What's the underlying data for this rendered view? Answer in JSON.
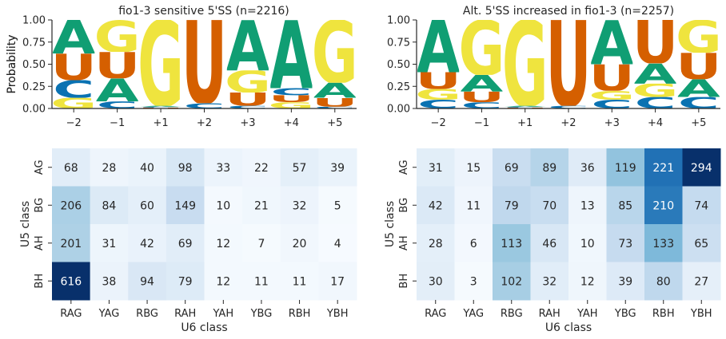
{
  "colors": {
    "A": "#109e73",
    "C": "#0a72b2",
    "G": "#efe43e",
    "U": "#d55f00",
    "cmap": [
      "#f7fbff",
      "#deebf7",
      "#c6dbef",
      "#9ecae1",
      "#6baed6",
      "#4292c6",
      "#2171b5",
      "#08519c",
      "#08306b"
    ]
  },
  "chart_data": [
    {
      "type": "sequence-logo",
      "title": "fio1-3 sensitive 5'SS (n=2216)",
      "ylabel": "Probability",
      "ylim": [
        0,
        1
      ],
      "yticks": [
        "0.00",
        "0.25",
        "0.50",
        "0.75",
        "1.00"
      ],
      "positions": [
        "−2",
        "−1",
        "+1",
        "+2",
        "+3",
        "+4",
        "+5"
      ],
      "letters": [
        [
          [
            "G",
            0.12
          ],
          [
            "C",
            0.2
          ],
          [
            "U",
            0.3
          ],
          [
            "A",
            0.38
          ]
        ],
        [
          [
            "C",
            0.08
          ],
          [
            "A",
            0.26
          ],
          [
            "U",
            0.3
          ],
          [
            "G",
            0.36
          ]
        ],
        [
          [
            "U",
            0.01
          ],
          [
            "C",
            0.01
          ],
          [
            "A",
            0.01
          ],
          [
            "G",
            0.97
          ]
        ],
        [
          [
            "C",
            0.06
          ],
          [
            "U",
            0.94
          ]
        ],
        [
          [
            "C",
            0.03
          ],
          [
            "U",
            0.15
          ],
          [
            "G",
            0.25
          ],
          [
            "A",
            0.57
          ]
        ],
        [
          [
            "G",
            0.07
          ],
          [
            "U",
            0.08
          ],
          [
            "C",
            0.08
          ],
          [
            "A",
            0.77
          ]
        ],
        [
          [
            "C",
            0.02
          ],
          [
            "U",
            0.1
          ],
          [
            "A",
            0.17
          ],
          [
            "G",
            0.71
          ]
        ]
      ]
    },
    {
      "type": "sequence-logo",
      "title": "Alt. 5'SS increased in fio1-3 (n=2257)",
      "ylabel": "Probability",
      "ylim": [
        0,
        1
      ],
      "yticks": [
        "0.00",
        "0.25",
        "0.50",
        "0.75",
        "1.00"
      ],
      "positions": [
        "−2",
        "−1",
        "+1",
        "+2",
        "+3",
        "+4",
        "+5"
      ],
      "letters": [
        [
          [
            "C",
            0.1
          ],
          [
            "G",
            0.12
          ],
          [
            "U",
            0.19
          ],
          [
            "A",
            0.59
          ]
        ],
        [
          [
            "C",
            0.07
          ],
          [
            "U",
            0.12
          ],
          [
            "A",
            0.19
          ],
          [
            "G",
            0.62
          ]
        ],
        [
          [
            "U",
            0.01
          ],
          [
            "C",
            0.01
          ],
          [
            "A",
            0.01
          ],
          [
            "G",
            0.97
          ]
        ],
        [
          [
            "C",
            0.03
          ],
          [
            "U",
            0.97
          ]
        ],
        [
          [
            "C",
            0.1
          ],
          [
            "G",
            0.1
          ],
          [
            "U",
            0.3
          ],
          [
            "A",
            0.5
          ]
        ],
        [
          [
            "C",
            0.13
          ],
          [
            "G",
            0.15
          ],
          [
            "A",
            0.23
          ],
          [
            "U",
            0.49
          ]
        ],
        [
          [
            "C",
            0.13
          ],
          [
            "A",
            0.2
          ],
          [
            "U",
            0.3
          ],
          [
            "G",
            0.37
          ]
        ]
      ]
    },
    {
      "type": "heatmap",
      "xlabel": "U6 class",
      "ylabel": "U5 class",
      "x": [
        "RAG",
        "YAG",
        "RBG",
        "RAH",
        "YAH",
        "YBG",
        "RBH",
        "YBH"
      ],
      "y": [
        "AG",
        "BG",
        "AH",
        "BH"
      ],
      "values": [
        [
          68,
          28,
          40,
          98,
          33,
          22,
          57,
          39
        ],
        [
          206,
          84,
          60,
          149,
          10,
          21,
          32,
          5
        ],
        [
          201,
          31,
          42,
          69,
          12,
          7,
          20,
          4
        ],
        [
          616,
          38,
          94,
          79,
          12,
          11,
          11,
          17
        ]
      ]
    },
    {
      "type": "heatmap",
      "xlabel": "U6 class",
      "ylabel": "U5 class",
      "x": [
        "RAG",
        "YAG",
        "RBG",
        "RAH",
        "YAH",
        "YBG",
        "RBH",
        "YBH"
      ],
      "y": [
        "AG",
        "BG",
        "AH",
        "BH"
      ],
      "values": [
        [
          31,
          15,
          69,
          89,
          36,
          119,
          221,
          294
        ],
        [
          42,
          11,
          79,
          70,
          13,
          85,
          210,
          74
        ],
        [
          28,
          6,
          113,
          46,
          10,
          73,
          133,
          65
        ],
        [
          30,
          3,
          102,
          32,
          12,
          39,
          80,
          27
        ]
      ]
    }
  ]
}
